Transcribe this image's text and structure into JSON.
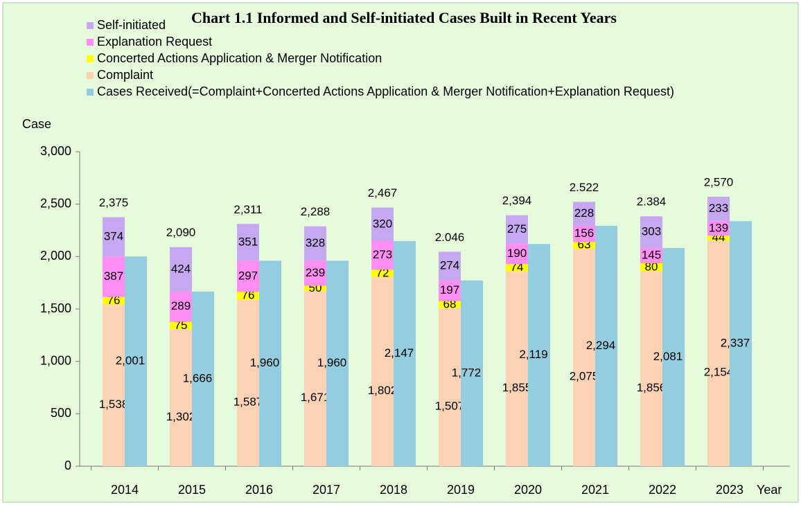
{
  "chart_data": {
    "type": "bar",
    "title": "Chart 1.1  Informed and Self-initiated Cases Built in Recent Years",
    "y_label": "Case",
    "x_label": "Year",
    "categories": [
      "2014",
      "2015",
      "2016",
      "2017",
      "2018",
      "2019",
      "2020",
      "2021",
      "2022",
      "2023"
    ],
    "series": [
      {
        "name": "Self-initiated",
        "color": "#c5a8f0",
        "stack": true,
        "values": [
          374,
          424,
          351,
          328,
          320,
          274,
          275,
          228,
          303,
          233
        ]
      },
      {
        "name": "Explanation Request",
        "color": "#ff8ef2",
        "stack": true,
        "values": [
          387,
          289,
          297,
          239,
          273,
          197,
          190,
          156,
          145,
          139
        ]
      },
      {
        "name": "Concerted Actions Application & Merger Notification",
        "color": "#ffff00",
        "stack": true,
        "values": [
          76,
          75,
          76,
          50,
          72,
          68,
          74,
          63,
          80,
          44
        ]
      },
      {
        "name": "Complaint",
        "color": "#fbd3b4",
        "stack": true,
        "values": [
          1538,
          1302,
          1587,
          1671,
          1802,
          1507,
          1855,
          2075,
          1856,
          2154
        ],
        "value_labels": [
          "1,538",
          "1,302",
          "1,587",
          "1,671",
          "1,802",
          "1,507",
          "1,855",
          "2,075",
          "1,856",
          "2,154"
        ]
      },
      {
        "name": "Cases Received(=Complaint+Concerted Actions Application & Merger Notification+Explanation Request)",
        "color": "#93cddf",
        "stack": false,
        "values": [
          2001,
          1666,
          1960,
          1960,
          2147,
          1772,
          2119,
          2294,
          2081,
          2337
        ],
        "value_labels": [
          "2,001",
          "1,666",
          "1,960",
          "1,960",
          "2,147",
          "1,772",
          "2,119",
          "2,294",
          "2,081",
          "2,337"
        ]
      }
    ],
    "totals": [
      2375,
      2090,
      2311,
      2288,
      2467,
      2046,
      2394,
      2522,
      2384,
      2570
    ],
    "total_labels": [
      "2,375",
      "2,090",
      "2,311",
      "2,288",
      "2,467",
      "2.046",
      "2,394",
      "2.522",
      "2.384",
      "2,570"
    ],
    "ylim": [
      0,
      3000
    ],
    "yticks": [
      0,
      500,
      {
        "value": 1000,
        "label": "1,000"
      },
      {
        "value": 1500,
        "label": "1,500"
      },
      {
        "value": 2000,
        "label": "2,000"
      },
      {
        "value": 2500,
        "label": "2,500"
      },
      {
        "value": 3000,
        "label": "3,000"
      }
    ],
    "grid": false,
    "legend": "top-left"
  }
}
